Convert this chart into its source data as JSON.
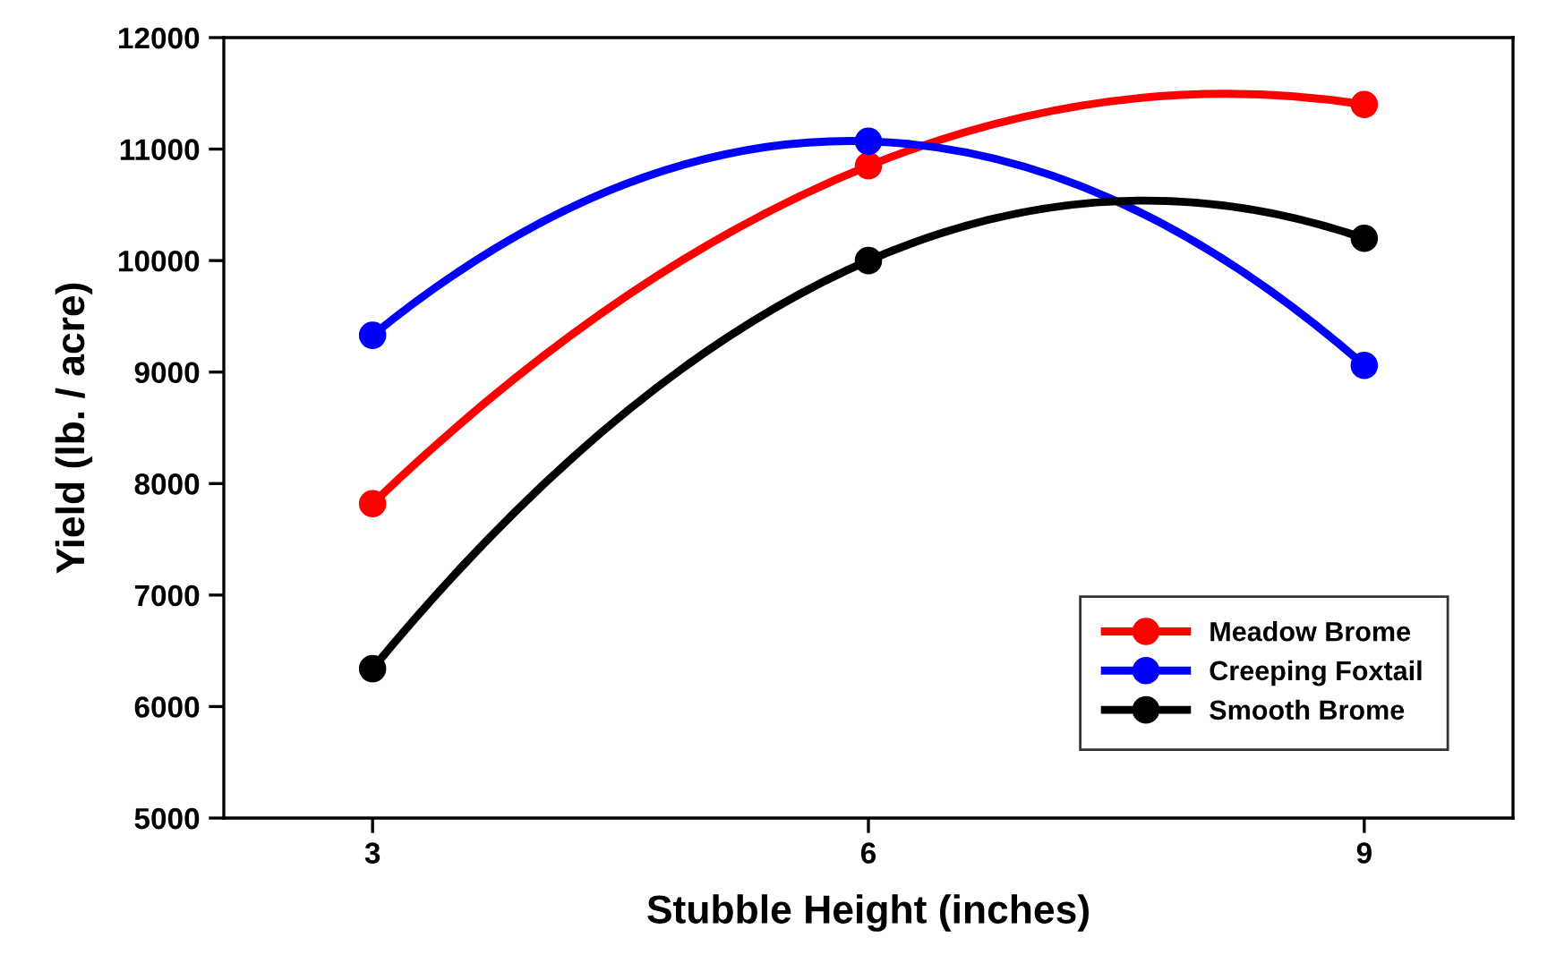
{
  "chart_data": {
    "type": "line",
    "xlabel": "Stubble Height (inches)",
    "ylabel": "Yield (lb. / acre)",
    "x": [
      3,
      6,
      9
    ],
    "series": [
      {
        "name": "Meadow Brome",
        "color": "#ff0000",
        "values": [
          7820,
          10850,
          11400
        ]
      },
      {
        "name": "Creeping Foxtail",
        "color": "#0000ff",
        "values": [
          9330,
          11070,
          9060
        ]
      },
      {
        "name": "Smooth Brome",
        "color": "#000000",
        "values": [
          6340,
          10000,
          10200
        ]
      }
    ],
    "xlim": [
      2.1,
      9.9
    ],
    "xticks": [
      3,
      6,
      9
    ],
    "ylim": [
      5000,
      12000
    ],
    "yticks": [
      5000,
      6000,
      7000,
      8000,
      9000,
      10000,
      11000,
      12000
    ],
    "grid": false,
    "legend": "bottom right",
    "marker": "circle",
    "line_style": "solid"
  }
}
